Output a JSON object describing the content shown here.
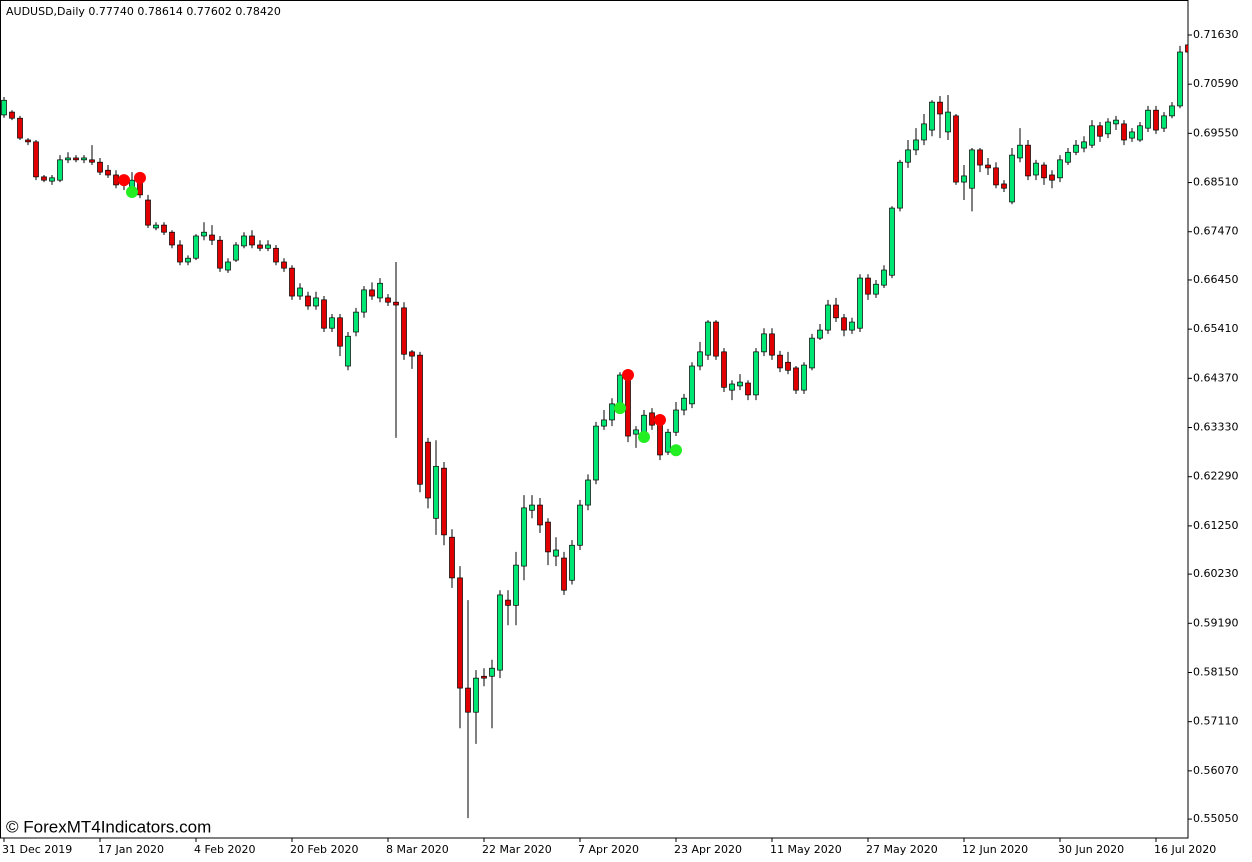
{
  "chart_data": {
    "type": "candlestick",
    "title": "AUDUSD,Daily  0.77740 0.78614 0.77602 0.78420",
    "watermark": "© ForexMT4Indicators.com",
    "up_color": "#00e673",
    "down_color": "#e00000",
    "categories": [
      "31 Dec 2019",
      null,
      null,
      null,
      null,
      null,
      null,
      null,
      null,
      null,
      null,
      null,
      "17 Jan 2020",
      null,
      null,
      null,
      null,
      null,
      null,
      null,
      null,
      null,
      null,
      null,
      "4 Feb 2020",
      null,
      null,
      null,
      null,
      null,
      null,
      null,
      null,
      null,
      null,
      null,
      "20 Feb 2020",
      null,
      null,
      null,
      null,
      null,
      null,
      null,
      null,
      null,
      null,
      null,
      "8 Mar 2020",
      null,
      null,
      null,
      null,
      null,
      null,
      null,
      null,
      null,
      null,
      null,
      "22 Mar 2020",
      null,
      null,
      null,
      null,
      null,
      null,
      null,
      null,
      null,
      null,
      null,
      "7 Apr 2020",
      null,
      null,
      null,
      null,
      null,
      null,
      null,
      null,
      null,
      null,
      null,
      "23 Apr 2020",
      null,
      null,
      null,
      null,
      null,
      null,
      null,
      null,
      null,
      null,
      null,
      "11 May 2020",
      null,
      null,
      null,
      null,
      null,
      null,
      null,
      null,
      null,
      null,
      null,
      "27 May 2020",
      null,
      null,
      null,
      null,
      null,
      null,
      null,
      null,
      null,
      null,
      null,
      "12 Jun 2020",
      null,
      null,
      null,
      null,
      null,
      null,
      null,
      null,
      null,
      null,
      null,
      "30 Jun 2020",
      null,
      null,
      null,
      null,
      null,
      null,
      null,
      null,
      null,
      null,
      null,
      "16 Jul 2020",
      null,
      null,
      null,
      null
    ],
    "open": [
      0.6994,
      0.7,
      0.6987,
      0.6941,
      0.6937,
      0.6863,
      0.6854,
      0.6856,
      0.6899,
      0.6903,
      0.6899,
      0.6899,
      0.6894,
      0.6877,
      0.6867,
      0.6846,
      0.6839,
      0.6856,
      0.6814,
      0.6755,
      0.6761,
      0.6746,
      0.6719,
      0.6683,
      0.6691,
      0.6738,
      0.674,
      0.6729,
      0.6666,
      0.6687,
      0.6717,
      0.6738,
      0.6719,
      0.6712,
      0.6712,
      0.6683,
      0.667,
      0.6611,
      0.6611,
      0.659,
      0.6603,
      0.6543,
      0.6565,
      0.6463,
      0.6535,
      0.6577,
      0.6624,
      0.6607,
      0.6607,
      0.6598,
      0.6586,
      0.6493,
      0.6486,
      0.6302,
      0.6141,
      0.6247,
      0.6101,
      0.6015,
      0.5782,
      0.5731,
      0.5807,
      0.5807,
      0.582,
      0.5968,
      0.5957,
      0.604,
      0.6158,
      0.6169,
      0.6133,
      0.6061,
      0.6057,
      0.601,
      0.6084,
      0.6169,
      0.6222,
      0.6336,
      0.6349,
      0.638,
      0.6444,
      0.6319,
      0.6323,
      0.6364,
      0.6349,
      0.6281,
      0.6323,
      0.637,
      0.6383,
      0.6463,
      0.6486,
      0.6556,
      0.6493,
      0.6412,
      0.6421,
      0.6427,
      0.6402,
      0.6493,
      0.6531,
      0.6486,
      0.6471,
      0.6459,
      0.6412,
      0.6459,
      0.6522,
      0.6539,
      0.6592,
      0.6565,
      0.6539,
      0.6543,
      0.6649,
      0.6615,
      0.6634,
      0.6655,
      0.6797,
      0.6894,
      0.692,
      0.6941,
      0.6962,
      0.7021,
      0.6958,
      0.6992,
      0.6852,
      0.6839,
      0.692,
      0.6888,
      0.6882,
      0.6848,
      0.681,
      0.6903,
      0.693,
      0.6867,
      0.6888,
      0.6867,
      0.6861,
      0.6894,
      0.6915,
      0.6924,
      0.693,
      0.6971,
      0.6954,
      0.6975,
      0.6975,
      0.6945,
      0.6941,
      0.6966,
      0.7004,
      0.6966,
      0.6992,
      0.7013,
      0.7142
    ],
    "high": [
      0.7032,
      0.7004,
      0.6992,
      0.6945,
      0.6941,
      0.6867,
      0.6867,
      0.6909,
      0.6915,
      0.6909,
      0.6909,
      0.693,
      0.6903,
      0.6888,
      0.6877,
      0.6865,
      0.6873,
      0.6865,
      0.6825,
      0.6767,
      0.6767,
      0.675,
      0.6729,
      0.6697,
      0.6742,
      0.6767,
      0.6761,
      0.6738,
      0.6691,
      0.6725,
      0.6746,
      0.675,
      0.6729,
      0.6729,
      0.6719,
      0.6691,
      0.6676,
      0.6638,
      0.662,
      0.662,
      0.6611,
      0.6573,
      0.6573,
      0.6535,
      0.6586,
      0.6632,
      0.664,
      0.6649,
      0.6615,
      0.6683,
      0.6598,
      0.6497,
      0.6493,
      0.6311,
      0.6306,
      0.626,
      0.6118,
      0.604,
      0.5968,
      0.582,
      0.5824,
      0.5842,
      0.5989,
      0.5989,
      0.607,
      0.619,
      0.619,
      0.6184,
      0.6141,
      0.6101,
      0.607,
      0.6095,
      0.618,
      0.6234,
      0.6345,
      0.637,
      0.6395,
      0.645,
      0.645,
      0.6336,
      0.637,
      0.6374,
      0.6355,
      0.633,
      0.6387,
      0.6404,
      0.6471,
      0.6514,
      0.656,
      0.656,
      0.6501,
      0.6433,
      0.6446,
      0.6433,
      0.6501,
      0.6543,
      0.6543,
      0.6495,
      0.6493,
      0.6463,
      0.6471,
      0.6531,
      0.6552,
      0.6603,
      0.6607,
      0.6573,
      0.6565,
      0.6657,
      0.6657,
      0.6645,
      0.6676,
      0.6801,
      0.6899,
      0.6941,
      0.6966,
      0.6996,
      0.7025,
      0.7034,
      0.7036,
      0.6996,
      0.6888,
      0.6924,
      0.6924,
      0.6903,
      0.6894,
      0.6856,
      0.6924,
      0.6966,
      0.6941,
      0.6899,
      0.6894,
      0.6877,
      0.6909,
      0.6924,
      0.6941,
      0.6949,
      0.6983,
      0.6979,
      0.6987,
      0.6992,
      0.6983,
      0.6966,
      0.6979,
      0.7013,
      0.7013,
      0.7,
      0.7021,
      0.714,
      0.7167
    ],
    "low": [
      0.6988,
      0.6983,
      0.6941,
      0.693,
      0.6856,
      0.6852,
      0.6846,
      0.6852,
      0.6892,
      0.6894,
      0.6892,
      0.6888,
      0.6867,
      0.6861,
      0.6839,
      0.6835,
      0.6835,
      0.6818,
      0.6755,
      0.675,
      0.674,
      0.6712,
      0.6676,
      0.6676,
      0.6687,
      0.6729,
      0.6719,
      0.6662,
      0.666,
      0.6683,
      0.6712,
      0.6712,
      0.6706,
      0.6706,
      0.6676,
      0.6662,
      0.6603,
      0.6603,
      0.6582,
      0.6582,
      0.6535,
      0.6535,
      0.6484,
      0.6454,
      0.6526,
      0.6565,
      0.6603,
      0.6598,
      0.659,
      0.6311,
      0.6476,
      0.6457,
      0.6196,
      0.6162,
      0.6106,
      0.6084,
      0.5994,
      0.5697,
      0.5507,
      0.5664,
      0.5786,
      0.5697,
      0.5803,
      0.5915,
      0.5915,
      0.601,
      0.6141,
      0.611,
      0.6042,
      0.604,
      0.5979,
      0.6001,
      0.6074,
      0.6158,
      0.6213,
      0.6328,
      0.6336,
      0.637,
      0.6302,
      0.629,
      0.6315,
      0.6328,
      0.6264,
      0.6275,
      0.6315,
      0.6359,
      0.6374,
      0.6454,
      0.6476,
      0.6476,
      0.6408,
      0.6391,
      0.6412,
      0.6391,
      0.6391,
      0.6484,
      0.6476,
      0.645,
      0.6446,
      0.6404,
      0.6404,
      0.6454,
      0.6518,
      0.6531,
      0.6556,
      0.6526,
      0.6531,
      0.6535,
      0.6603,
      0.6607,
      0.6628,
      0.6649,
      0.679,
      0.6882,
      0.6909,
      0.693,
      0.6949,
      0.6945,
      0.6941,
      0.6846,
      0.6814,
      0.679,
      0.6873,
      0.6867,
      0.6839,
      0.6831,
      0.6805,
      0.6894,
      0.6856,
      0.6856,
      0.6846,
      0.6839,
      0.6852,
      0.6888,
      0.6909,
      0.6915,
      0.6924,
      0.6937,
      0.6945,
      0.6962,
      0.693,
      0.6937,
      0.6937,
      0.6958,
      0.6954,
      0.6958,
      0.6987,
      0.7008,
      0.7121
    ],
    "close": [
      0.7025,
      0.6987,
      0.6945,
      0.6937,
      0.6863,
      0.6856,
      0.6861,
      0.6899,
      0.6903,
      0.6899,
      0.6903,
      0.6894,
      0.6873,
      0.6867,
      0.6846,
      0.6852,
      0.6856,
      0.6825,
      0.6761,
      0.6761,
      0.6746,
      0.6719,
      0.6683,
      0.6691,
      0.6738,
      0.6746,
      0.6729,
      0.667,
      0.6683,
      0.6719,
      0.6738,
      0.6719,
      0.6712,
      0.6719,
      0.6683,
      0.667,
      0.6611,
      0.6628,
      0.659,
      0.6607,
      0.6543,
      0.6565,
      0.6505,
      0.6526,
      0.6577,
      0.6624,
      0.6611,
      0.6638,
      0.6598,
      0.6592,
      0.6488,
      0.6484,
      0.6213,
      0.6184,
      0.6251,
      0.6106,
      0.6015,
      0.5782,
      0.5731,
      0.5803,
      0.5803,
      0.5824,
      0.5979,
      0.5957,
      0.6042,
      0.6163,
      0.6169,
      0.6127,
      0.607,
      0.6074,
      0.5989,
      0.6084,
      0.6169,
      0.6222,
      0.6336,
      0.6349,
      0.6383,
      0.6444,
      0.6315,
      0.6328,
      0.6359,
      0.6338,
      0.6275,
      0.6323,
      0.637,
      0.6395,
      0.6463,
      0.6493,
      0.6556,
      0.6484,
      0.6418,
      0.6425,
      0.6429,
      0.6402,
      0.6493,
      0.6531,
      0.6486,
      0.6459,
      0.6454,
      0.6412,
      0.6465,
      0.6522,
      0.6539,
      0.6592,
      0.6565,
      0.6539,
      0.6556,
      0.6649,
      0.6615,
      0.6636,
      0.6666,
      0.6797,
      0.6894,
      0.692,
      0.6941,
      0.6975,
      0.7021,
      0.6996,
      0.7,
      0.6852,
      0.6865,
      0.692,
      0.6888,
      0.6882,
      0.6846,
      0.6839,
      0.6909,
      0.693,
      0.6865,
      0.6892,
      0.6861,
      0.6856,
      0.6899,
      0.6915,
      0.693,
      0.6937,
      0.6971,
      0.6949,
      0.6979,
      0.6983,
      0.6941,
      0.6958,
      0.6971,
      0.7004,
      0.6962,
      0.6992,
      0.7013,
      0.7127,
      0.7127
    ],
    "markers": [
      {
        "color": "#ff0000",
        "values": [
          null,
          null,
          null,
          null,
          null,
          null,
          null,
          null,
          null,
          null,
          null,
          null,
          null,
          null,
          null,
          0.6856,
          null,
          0.6861,
          null,
          null,
          null,
          null,
          null,
          null,
          null,
          null,
          null,
          null,
          null,
          null,
          null,
          null,
          null,
          null,
          null,
          null,
          null,
          null,
          null,
          null,
          null,
          null,
          null,
          null,
          null,
          null,
          null,
          null,
          null,
          null,
          null,
          null,
          null,
          null,
          null,
          null,
          null,
          null,
          null,
          null,
          null,
          null,
          null,
          null,
          null,
          null,
          null,
          null,
          null,
          null,
          null,
          null,
          null,
          null,
          null,
          null,
          null,
          null,
          0.6444,
          null,
          null,
          null,
          0.6349,
          null,
          null,
          null,
          null,
          null,
          null,
          null,
          null,
          null,
          null,
          null,
          null,
          null,
          null,
          null,
          null,
          null,
          null,
          null,
          null,
          null,
          null,
          null,
          null,
          null,
          null,
          null,
          null,
          null,
          null,
          null,
          null,
          null,
          null,
          null,
          null,
          null,
          null,
          null,
          null,
          null,
          null,
          null,
          null,
          null,
          null,
          null,
          null,
          null,
          null,
          null,
          null,
          null,
          null,
          null,
          null,
          null,
          null,
          null,
          null,
          null,
          null,
          null,
          null,
          null,
          null
        ]
      },
      {
        "color": "#22ee22",
        "values": [
          null,
          null,
          null,
          null,
          null,
          null,
          null,
          null,
          null,
          null,
          null,
          null,
          null,
          null,
          null,
          null,
          0.6831,
          null,
          null,
          null,
          null,
          null,
          null,
          null,
          null,
          null,
          null,
          null,
          null,
          null,
          null,
          null,
          null,
          null,
          null,
          null,
          null,
          null,
          null,
          null,
          null,
          null,
          null,
          null,
          null,
          null,
          null,
          null,
          null,
          null,
          null,
          null,
          null,
          null,
          null,
          null,
          null,
          null,
          null,
          null,
          null,
          null,
          null,
          null,
          null,
          null,
          null,
          null,
          null,
          null,
          null,
          null,
          null,
          null,
          null,
          null,
          null,
          0.6374,
          null,
          null,
          0.6313,
          null,
          null,
          null,
          0.6285,
          null,
          null,
          null,
          null,
          null,
          null,
          null,
          null,
          null,
          null,
          null,
          null,
          null,
          null,
          null,
          null,
          null,
          null,
          null,
          null,
          null,
          null,
          null,
          null,
          null,
          null,
          null,
          null,
          null,
          null,
          null,
          null,
          null,
          null,
          null,
          null,
          null,
          null,
          null,
          null,
          null,
          null,
          null,
          null,
          null,
          null,
          null,
          null,
          null,
          null,
          null,
          null,
          null,
          null,
          null,
          null,
          null,
          null,
          null,
          null,
          null,
          null,
          null,
          null
        ]
      }
    ],
    "ylim": [
      0.5465,
      0.7237
    ],
    "yticks": [
      {
        "value": 0.7163,
        "label": "0.71630"
      },
      {
        "value": 0.7059,
        "label": "0.70590"
      },
      {
        "value": 0.6955,
        "label": "0.69550"
      },
      {
        "value": 0.6851,
        "label": "0.68510"
      },
      {
        "value": 0.6747,
        "label": "0.67470"
      },
      {
        "value": 0.6645,
        "label": "0.66450"
      },
      {
        "value": 0.6541,
        "label": "0.65410"
      },
      {
        "value": 0.6437,
        "label": "0.64370"
      },
      {
        "value": 0.6333,
        "label": "0.63330"
      },
      {
        "value": 0.6229,
        "label": "0.62290"
      },
      {
        "value": 0.6125,
        "label": "0.61250"
      },
      {
        "value": 0.6023,
        "label": "0.60230"
      },
      {
        "value": 0.5919,
        "label": "0.59190"
      },
      {
        "value": 0.5815,
        "label": "0.58150"
      },
      {
        "value": 0.5711,
        "label": "0.57110"
      },
      {
        "value": 0.5607,
        "label": "0.56070"
      },
      {
        "value": 0.5505,
        "label": "0.55050"
      }
    ],
    "grid": false
  }
}
